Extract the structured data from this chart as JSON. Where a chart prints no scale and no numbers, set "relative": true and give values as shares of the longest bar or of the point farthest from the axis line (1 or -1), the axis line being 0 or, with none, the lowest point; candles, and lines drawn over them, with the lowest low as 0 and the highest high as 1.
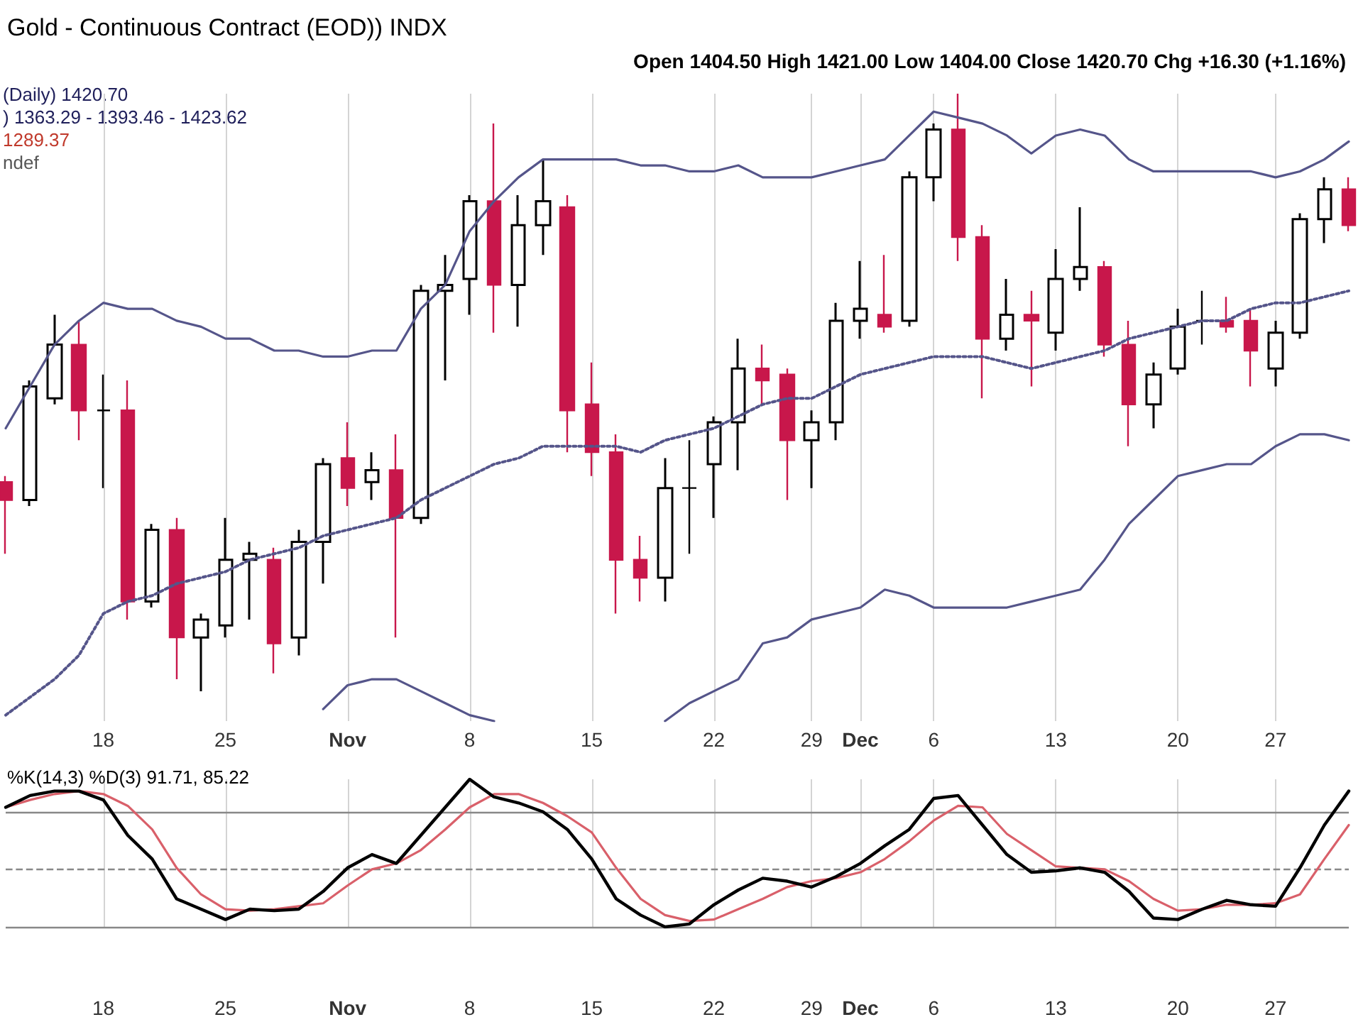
{
  "chart_data": [
    {
      "type": "candlestick",
      "title": "Gold - Continuous Contract (EOD)) INDX",
      "relative": true,
      "tick_labels": "x",
      "grid": "x",
      "marker": "none",
      "annotations": [
        "Open 1404.50 High 1421.00 Low 1404.00 Close 1420.70 Chg +16.30 (+1.16%)",
        "(Daily) 1420.70",
        ") 1363.29 - 1393.46 - 1423.62",
        "1289.37",
        "ndef"
      ],
      "categories": [
        null,
        null,
        null,
        null,
        "18",
        null,
        null,
        null,
        null,
        "25",
        null,
        null,
        null,
        null,
        "Nov",
        null,
        null,
        null,
        null,
        "8",
        null,
        null,
        null,
        null,
        "15",
        null,
        null,
        null,
        null,
        "22",
        null,
        null,
        null,
        "29",
        null,
        "Dec",
        null,
        null,
        "6",
        null,
        null,
        null,
        null,
        "13",
        null,
        null,
        null,
        null,
        "20",
        null,
        null,
        null,
        "27",
        null,
        null,
        null
      ],
      "ohlc": [
        [
          0.35,
          0.36,
          0.23,
          0.32
        ],
        [
          0.32,
          0.52,
          0.31,
          0.51
        ],
        [
          0.49,
          0.63,
          0.48,
          0.58
        ],
        [
          0.58,
          0.62,
          0.42,
          0.47
        ],
        [
          0.47,
          0.53,
          0.34,
          0.47
        ],
        [
          0.47,
          0.52,
          0.12,
          0.15
        ],
        [
          0.15,
          0.28,
          0.14,
          0.27
        ],
        [
          0.27,
          0.29,
          0.02,
          0.09
        ],
        [
          0.09,
          0.13,
          0,
          0.12
        ],
        [
          0.11,
          0.29,
          0.09,
          0.22
        ],
        [
          0.22,
          0.25,
          0.12,
          0.23
        ],
        [
          0.22,
          0.24,
          0.03,
          0.08
        ],
        [
          0.09,
          0.27,
          0.06,
          0.25
        ],
        [
          0.25,
          0.39,
          0.18,
          0.38
        ],
        [
          0.39,
          0.45,
          0.31,
          0.34
        ],
        [
          0.35,
          0.4,
          0.32,
          0.37
        ],
        [
          0.37,
          0.43,
          0.09,
          0.29
        ],
        [
          0.29,
          0.68,
          0.28,
          0.67
        ],
        [
          0.67,
          0.73,
          0.52,
          0.68
        ],
        [
          0.69,
          0.83,
          0.63,
          0.82
        ],
        [
          0.82,
          0.95,
          0.6,
          0.68
        ],
        [
          0.68,
          0.83,
          0.61,
          0.78
        ],
        [
          0.78,
          0.89,
          0.73,
          0.82
        ],
        [
          0.81,
          0.83,
          0.4,
          0.47
        ],
        [
          0.48,
          0.55,
          0.36,
          0.4
        ],
        [
          0.4,
          0.43,
          0.13,
          0.22
        ],
        [
          0.22,
          0.26,
          0.15,
          0.19
        ],
        [
          0.19,
          0.39,
          0.15,
          0.34
        ],
        [
          0.34,
          0.42,
          0.23,
          0.34
        ],
        [
          0.38,
          0.46,
          0.29,
          0.45
        ],
        [
          0.45,
          0.59,
          0.37,
          0.54
        ],
        [
          0.54,
          0.58,
          0.48,
          0.52
        ],
        [
          0.53,
          0.54,
          0.32,
          0.42
        ],
        [
          0.42,
          0.47,
          0.34,
          0.45
        ],
        [
          0.45,
          0.65,
          0.42,
          0.62
        ],
        [
          0.62,
          0.72,
          0.59,
          0.64
        ],
        [
          0.63,
          0.73,
          0.6,
          0.61
        ],
        [
          0.62,
          0.87,
          0.61,
          0.86
        ],
        [
          0.86,
          0.95,
          0.82,
          0.94
        ],
        [
          0.94,
          1,
          0.72,
          0.76
        ],
        [
          0.76,
          0.78,
          0.49,
          0.59
        ],
        [
          0.59,
          0.69,
          0.57,
          0.63
        ],
        [
          0.63,
          0.67,
          0.51,
          0.62
        ],
        [
          0.6,
          0.74,
          0.57,
          0.69
        ],
        [
          0.69,
          0.81,
          0.67,
          0.71
        ],
        [
          0.71,
          0.72,
          0.56,
          0.58
        ],
        [
          0.58,
          0.62,
          0.41,
          0.48
        ],
        [
          0.48,
          0.55,
          0.44,
          0.53
        ],
        [
          0.54,
          0.64,
          0.53,
          0.61
        ],
        [
          0.62,
          0.67,
          0.58,
          0.62
        ],
        [
          0.62,
          0.66,
          0.6,
          0.61
        ],
        [
          0.62,
          0.64,
          0.51,
          0.57
        ],
        [
          0.54,
          0.62,
          0.51,
          0.6
        ],
        [
          0.6,
          0.8,
          0.59,
          0.79
        ],
        [
          0.79,
          0.86,
          0.75,
          0.84
        ],
        [
          0.84,
          0.86,
          0.77,
          0.78
        ]
      ],
      "colors": [
        "#c8174b",
        "#000000",
        "#000000",
        "#c8174b",
        "#000000",
        "#c8174b",
        "#000000",
        "#c8174b",
        "#000000",
        "#000000",
        "#000000",
        "#c8174b",
        "#000000",
        "#000000",
        "#c8174b",
        "#000000",
        "#c8174b",
        "#000000",
        "#000000",
        "#000000",
        "#c8174b",
        "#000000",
        "#000000",
        "#c8174b",
        "#c8174b",
        "#c8174b",
        "#c8174b",
        "#000000",
        "#000000",
        "#000000",
        "#000000",
        "#c8174b",
        "#c8174b",
        "#000000",
        "#000000",
        "#000000",
        "#c8174b",
        "#000000",
        "#000000",
        "#c8174b",
        "#c8174b",
        "#000000",
        "#c8174b",
        "#000000",
        "#000000",
        "#c8174b",
        "#c8174b",
        "#000000",
        "#000000",
        "#000000",
        "#c8174b",
        "#c8174b",
        "#000000",
        "#000000",
        "#000000",
        "#c8174b"
      ],
      "series": [
        {
          "type": "line",
          "color": "#55558a",
          "line_style": "solid",
          "values": [
            0.44,
            0.51,
            0.58,
            0.62,
            0.65,
            0.64,
            0.64,
            0.62,
            0.61,
            0.59,
            0.59,
            0.57,
            0.57,
            0.56,
            0.56,
            0.57,
            0.57,
            0.64,
            0.68,
            0.77,
            0.82,
            0.86,
            0.89,
            0.89,
            0.89,
            0.89,
            0.88,
            0.88,
            0.87,
            0.87,
            0.88,
            0.86,
            0.86,
            0.86,
            0.87,
            0.88,
            0.89,
            0.93,
            0.97,
            0.96,
            0.95,
            0.93,
            0.9,
            0.93,
            0.94,
            0.93,
            0.89,
            0.87,
            0.87,
            0.87,
            0.87,
            0.87,
            0.86,
            0.87,
            0.89,
            0.92
          ]
        },
        {
          "type": "line",
          "color": "#55558a",
          "line_style": "dotted",
          "values": [
            -0.04,
            -0.01,
            0.02,
            0.06,
            0.13,
            0.15,
            0.16,
            0.18,
            0.19,
            0.2,
            0.22,
            0.23,
            0.24,
            0.26,
            0.27,
            0.28,
            0.29,
            0.32,
            0.34,
            0.36,
            0.38,
            0.39,
            0.41,
            0.41,
            0.41,
            0.41,
            0.4,
            0.42,
            0.43,
            0.44,
            0.46,
            0.48,
            0.49,
            0.49,
            0.51,
            0.53,
            0.54,
            0.55,
            0.56,
            0.56,
            0.56,
            0.55,
            0.54,
            0.55,
            0.56,
            0.57,
            0.59,
            0.6,
            0.61,
            0.62,
            0.62,
            0.64,
            0.65,
            0.65,
            0.66,
            0.67
          ]
        },
        {
          "type": "line",
          "color": "#55558a",
          "line_style": "solid",
          "values": [
            null,
            null,
            null,
            null,
            null,
            null,
            null,
            null,
            null,
            null,
            null,
            null,
            null,
            -0.03,
            0.01,
            0.02,
            0.02,
            0,
            -0.02,
            -0.04,
            -0.05,
            null,
            null,
            null,
            null,
            null,
            null,
            -0.05,
            -0.02,
            0,
            0.02,
            0.08,
            0.09,
            0.12,
            0.13,
            0.14,
            0.17,
            0.16,
            0.14,
            0.14,
            0.14,
            0.14,
            0.15,
            0.16,
            0.17,
            0.22,
            0.28,
            0.32,
            0.36,
            0.37,
            0.38,
            0.38,
            0.41,
            0.43,
            0.43,
            0.42
          ]
        }
      ]
    },
    {
      "type": "line",
      "title": "%K(14,3) %D(3) 91.71, 85.22",
      "relative": true,
      "tick_labels": "x",
      "grid": "x",
      "marker": "none",
      "categories": [
        null,
        null,
        null,
        null,
        "18",
        null,
        null,
        null,
        null,
        "25",
        null,
        null,
        null,
        null,
        "Nov",
        null,
        null,
        null,
        null,
        "8",
        null,
        null,
        null,
        null,
        "15",
        null,
        null,
        null,
        null,
        "22",
        null,
        null,
        null,
        "29",
        null,
        "Dec",
        null,
        null,
        "6",
        null,
        null,
        null,
        null,
        "13",
        null,
        null,
        null,
        null,
        "20",
        null,
        null,
        null,
        "27",
        null,
        null,
        null
      ],
      "ref_lines": [
        {
          "axis": "y",
          "value": 0.78,
          "color": "#888888",
          "line_style": "solid"
        },
        {
          "axis": "y",
          "value": 0.39,
          "color": "#888888",
          "line_style": "dashed"
        },
        {
          "axis": "y",
          "value": 0,
          "color": "#888888",
          "line_style": "solid"
        }
      ],
      "series": [
        {
          "color": "#d9606a",
          "line_style": "solid",
          "values": [
            0.81,
            0.86,
            0.9,
            0.92,
            0.9,
            0.82,
            0.66,
            0.4,
            0.22,
            0.12,
            0.11,
            0.12,
            0.14,
            0.16,
            0.28,
            0.39,
            0.43,
            0.52,
            0.66,
            0.81,
            0.9,
            0.9,
            0.84,
            0.75,
            0.64,
            0.4,
            0.19,
            0.08,
            0.04,
            0.05,
            0.12,
            0.19,
            0.27,
            0.31,
            0.33,
            0.37,
            0.46,
            0.58,
            0.72,
            0.82,
            0.81,
            0.63,
            0.52,
            0.41,
            0.4,
            0.39,
            0.31,
            0.19,
            0.11,
            0.12,
            0.15,
            0.15,
            0.16,
            0.22,
            0.46,
            0.69
          ]
        },
        {
          "color": "#000000",
          "line_style": "solid",
          "values": [
            0.81,
            0.89,
            0.92,
            0.92,
            0.86,
            0.62,
            0.46,
            0.19,
            0.12,
            0.05,
            0.12,
            0.11,
            0.12,
            0.24,
            0.4,
            0.49,
            0.43,
            0.62,
            0.81,
            1,
            0.88,
            0.84,
            0.78,
            0.66,
            0.46,
            0.19,
            0.08,
            0,
            0.02,
            0.15,
            0.25,
            0.33,
            0.31,
            0.27,
            0.34,
            0.43,
            0.55,
            0.66,
            0.87,
            0.89,
            0.69,
            0.49,
            0.37,
            0.38,
            0.4,
            0.37,
            0.24,
            0.06,
            0.05,
            0.12,
            0.18,
            0.15,
            0.14,
            0.4,
            0.69,
            0.92
          ]
        }
      ]
    }
  ]
}
